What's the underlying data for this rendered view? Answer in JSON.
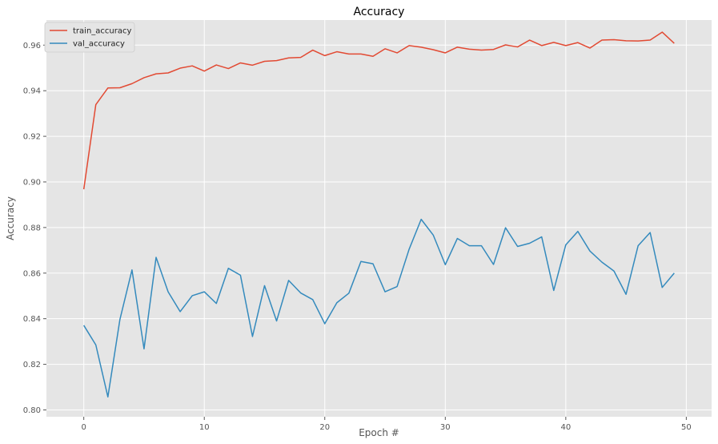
{
  "chart_data": {
    "type": "line",
    "title": "Accuracy",
    "xlabel": "Epoch #",
    "ylabel": "Accuracy",
    "xlim": [
      -3.1,
      52.1
    ],
    "ylim": [
      0.797,
      0.971
    ],
    "xticks": [
      0,
      10,
      20,
      30,
      40,
      50
    ],
    "yticks": [
      0.8,
      0.82,
      0.84,
      0.86,
      0.88,
      0.9,
      0.92,
      0.94,
      0.96
    ],
    "ytick_labels": [
      "0.80",
      "0.82",
      "0.84",
      "0.86",
      "0.88",
      "0.90",
      "0.92",
      "0.94",
      "0.96"
    ],
    "grid": true,
    "legend_position": "top-left",
    "x": [
      0,
      1,
      2,
      3,
      4,
      5,
      6,
      7,
      8,
      9,
      10,
      11,
      12,
      13,
      14,
      15,
      16,
      17,
      18,
      19,
      20,
      21,
      22,
      23,
      24,
      25,
      26,
      27,
      28,
      29,
      30,
      31,
      32,
      33,
      34,
      35,
      36,
      37,
      38,
      39,
      40,
      41,
      42,
      43,
      44,
      45,
      46,
      47,
      48,
      49
    ],
    "series": [
      {
        "name": "train_accuracy",
        "color": "#E24A33",
        "values": [
          0.8968,
          0.9339,
          0.9412,
          0.9413,
          0.9431,
          0.9457,
          0.9474,
          0.9478,
          0.9499,
          0.9509,
          0.9486,
          0.9513,
          0.9497,
          0.9522,
          0.9512,
          0.9529,
          0.9532,
          0.9544,
          0.9546,
          0.9578,
          0.9554,
          0.9571,
          0.9561,
          0.9561,
          0.9551,
          0.9584,
          0.9566,
          0.9598,
          0.9591,
          0.958,
          0.9566,
          0.9591,
          0.9582,
          0.9578,
          0.9581,
          0.9601,
          0.9592,
          0.9622,
          0.9598,
          0.9612,
          0.9598,
          0.9611,
          0.9587,
          0.9622,
          0.9624,
          0.9619,
          0.9618,
          0.9622,
          0.9657,
          0.9608
        ]
      },
      {
        "name": "val_accuracy",
        "color": "#348ABD",
        "values": [
          0.8371,
          0.8285,
          0.8057,
          0.8397,
          0.8614,
          0.8268,
          0.8669,
          0.8518,
          0.8431,
          0.8501,
          0.8518,
          0.8467,
          0.8621,
          0.8591,
          0.8322,
          0.8545,
          0.839,
          0.8568,
          0.8513,
          0.8484,
          0.8378,
          0.847,
          0.8512,
          0.8651,
          0.8641,
          0.8518,
          0.8541,
          0.8705,
          0.8836,
          0.8767,
          0.8637,
          0.8752,
          0.872,
          0.872,
          0.8638,
          0.8799,
          0.8717,
          0.8731,
          0.8759,
          0.8524,
          0.8724,
          0.8783,
          0.8697,
          0.8648,
          0.8609,
          0.8507,
          0.872,
          0.8778,
          0.8537,
          0.86
        ]
      }
    ]
  },
  "colors": {
    "plot_background": "#E5E5E5",
    "grid": "#FFFFFF"
  }
}
